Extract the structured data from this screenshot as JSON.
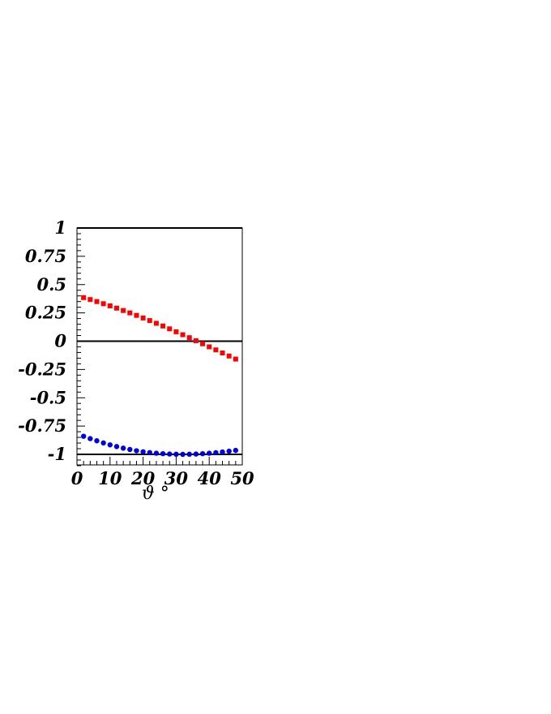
{
  "chart_data": {
    "type": "scatter",
    "xlabel": "ϑ °",
    "ylabel": "",
    "xlim": [
      0,
      50
    ],
    "ylim": [
      -1.1,
      1.0
    ],
    "x_ticks": [
      0,
      10,
      20,
      30,
      40,
      50
    ],
    "x_tick_labels": [
      "0",
      "10",
      "20",
      "30",
      "40",
      "50"
    ],
    "y_ticks": [
      1,
      0.75,
      0.5,
      0.25,
      0,
      -0.25,
      -0.5,
      -0.75,
      -1
    ],
    "y_tick_labels": [
      "1",
      "0.75",
      "0.5",
      "0.25",
      "0",
      "-0.25",
      "-0.5",
      "-0.75",
      "-1"
    ],
    "reference_lines": [
      1,
      0,
      -1
    ],
    "grid": false,
    "series": [
      {
        "marker": "square",
        "color": "#ff0000",
        "x": [
          2,
          4,
          6,
          8,
          10,
          12,
          14,
          16,
          18,
          20,
          22,
          24,
          26,
          28,
          30,
          32,
          34,
          36,
          38,
          40,
          42,
          44,
          46,
          48
        ],
        "y": [
          0.385,
          0.368,
          0.35,
          0.331,
          0.312,
          0.292,
          0.271,
          0.25,
          0.228,
          0.205,
          0.182,
          0.158,
          0.134,
          0.109,
          0.083,
          0.057,
          0.031,
          0.004,
          -0.023,
          -0.05,
          -0.077,
          -0.104,
          -0.131,
          -0.158
        ]
      },
      {
        "marker": "circle",
        "color": "#0000e6",
        "x": [
          2,
          4,
          6,
          8,
          10,
          12,
          14,
          16,
          18,
          20,
          22,
          24,
          26,
          28,
          30,
          32,
          34,
          36,
          38,
          40,
          42,
          44,
          46,
          48
        ],
        "y": [
          -0.84,
          -0.861,
          -0.88,
          -0.899,
          -0.916,
          -0.931,
          -0.945,
          -0.957,
          -0.968,
          -0.977,
          -0.984,
          -0.99,
          -0.994,
          -0.997,
          -0.999,
          -1.0,
          -0.999,
          -0.997,
          -0.994,
          -0.99,
          -0.985,
          -0.979,
          -0.972,
          -0.965
        ]
      }
    ]
  }
}
